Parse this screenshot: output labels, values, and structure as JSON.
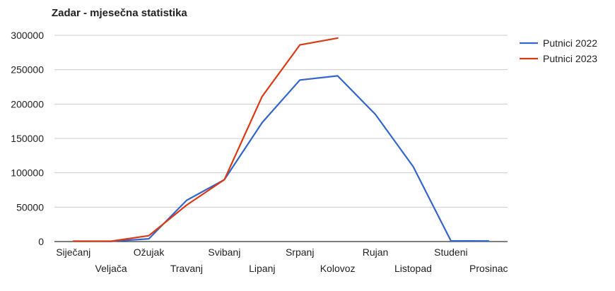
{
  "chart_data": {
    "type": "line",
    "title": "Zadar - mjesečna statistika",
    "xlabel": "",
    "ylabel": "",
    "categories": [
      "Siječanj",
      "Veljača",
      "Ožujak",
      "Travanj",
      "Svibanj",
      "Lipanj",
      "Srpanj",
      "Kolovoz",
      "Rujan",
      "Listopad",
      "Studeni",
      "Prosinac"
    ],
    "ylim": [
      0,
      300000
    ],
    "yticks": [
      "0",
      "50000",
      "100000",
      "150000",
      "200000",
      "250000",
      "300000"
    ],
    "grid": true,
    "legend_position": "right",
    "series": [
      {
        "name": "Putnici 2022",
        "color": "#3366cc",
        "values": [
          500,
          300,
          4000,
          60000,
          90000,
          173000,
          235000,
          241000,
          185000,
          109000,
          1000,
          800
        ]
      },
      {
        "name": "Putnici 2023",
        "color": "#dc3912",
        "values": [
          500,
          500,
          8500,
          53000,
          90000,
          211000,
          286000,
          296000,
          null,
          null,
          null,
          null
        ]
      }
    ]
  }
}
